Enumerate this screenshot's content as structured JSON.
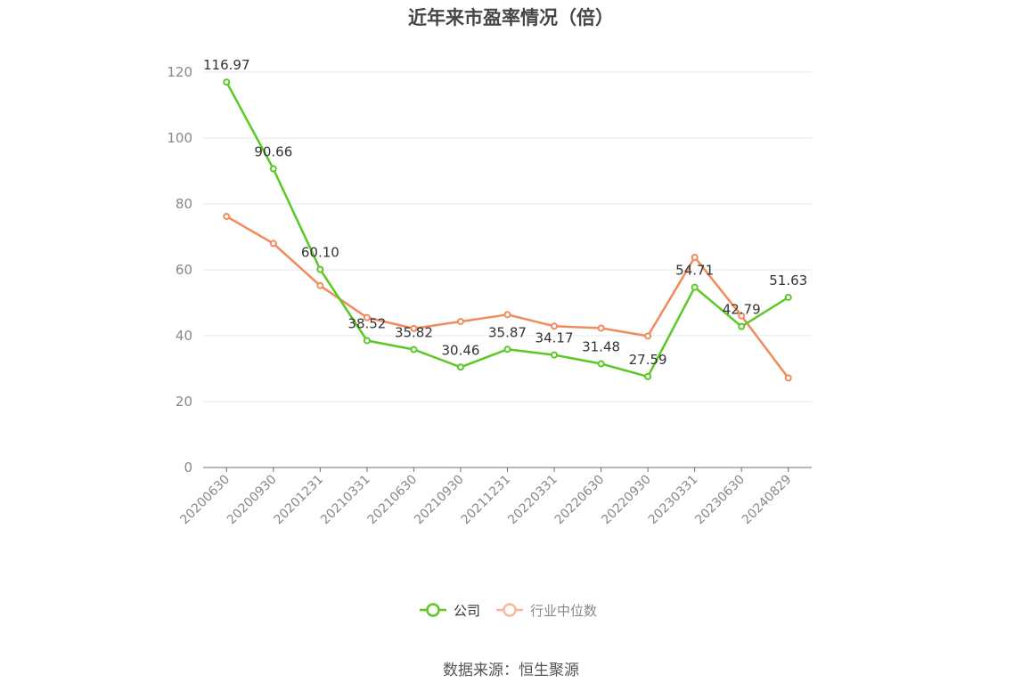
{
  "chart_data": {
    "type": "line",
    "title": "近年来市盈率情况（倍）",
    "categories": [
      "20200630",
      "20200930",
      "20201231",
      "20210331",
      "20210630",
      "20210930",
      "20211231",
      "20220331",
      "20220630",
      "20220930",
      "20230331",
      "20230630",
      "20240829"
    ],
    "series": [
      {
        "name": "公司",
        "color": "#5ac825",
        "values": [
          116.97,
          90.66,
          60.1,
          38.52,
          35.82,
          30.46,
          35.87,
          34.17,
          31.48,
          27.59,
          54.71,
          42.79,
          51.63
        ],
        "labels": [
          "116.97",
          "90.66",
          "60.10",
          "38.52",
          "35.82",
          "30.46",
          "35.87",
          "34.17",
          "31.48",
          "27.59",
          "54.71",
          "42.79",
          "51.63"
        ]
      },
      {
        "name": "行业中位数",
        "color": "#f28a5c",
        "values": [
          76.2,
          68.0,
          55.2,
          45.5,
          42.2,
          44.3,
          46.4,
          42.9,
          42.3,
          39.9,
          63.8,
          46.0,
          27.2
        ]
      }
    ],
    "xlabel": "",
    "ylabel": "",
    "ylim": [
      0,
      120
    ],
    "yticks": [
      "0",
      "20",
      "40",
      "60",
      "80",
      "100",
      "120"
    ],
    "grid": true,
    "legend_position": "bottom-center"
  },
  "legend": {
    "active_color": "#5ac825",
    "inactive_color": "#f9b89a",
    "active_text_color": "#333333",
    "inactive_text_color": "#888888"
  },
  "source_text": "数据来源：恒生聚源"
}
